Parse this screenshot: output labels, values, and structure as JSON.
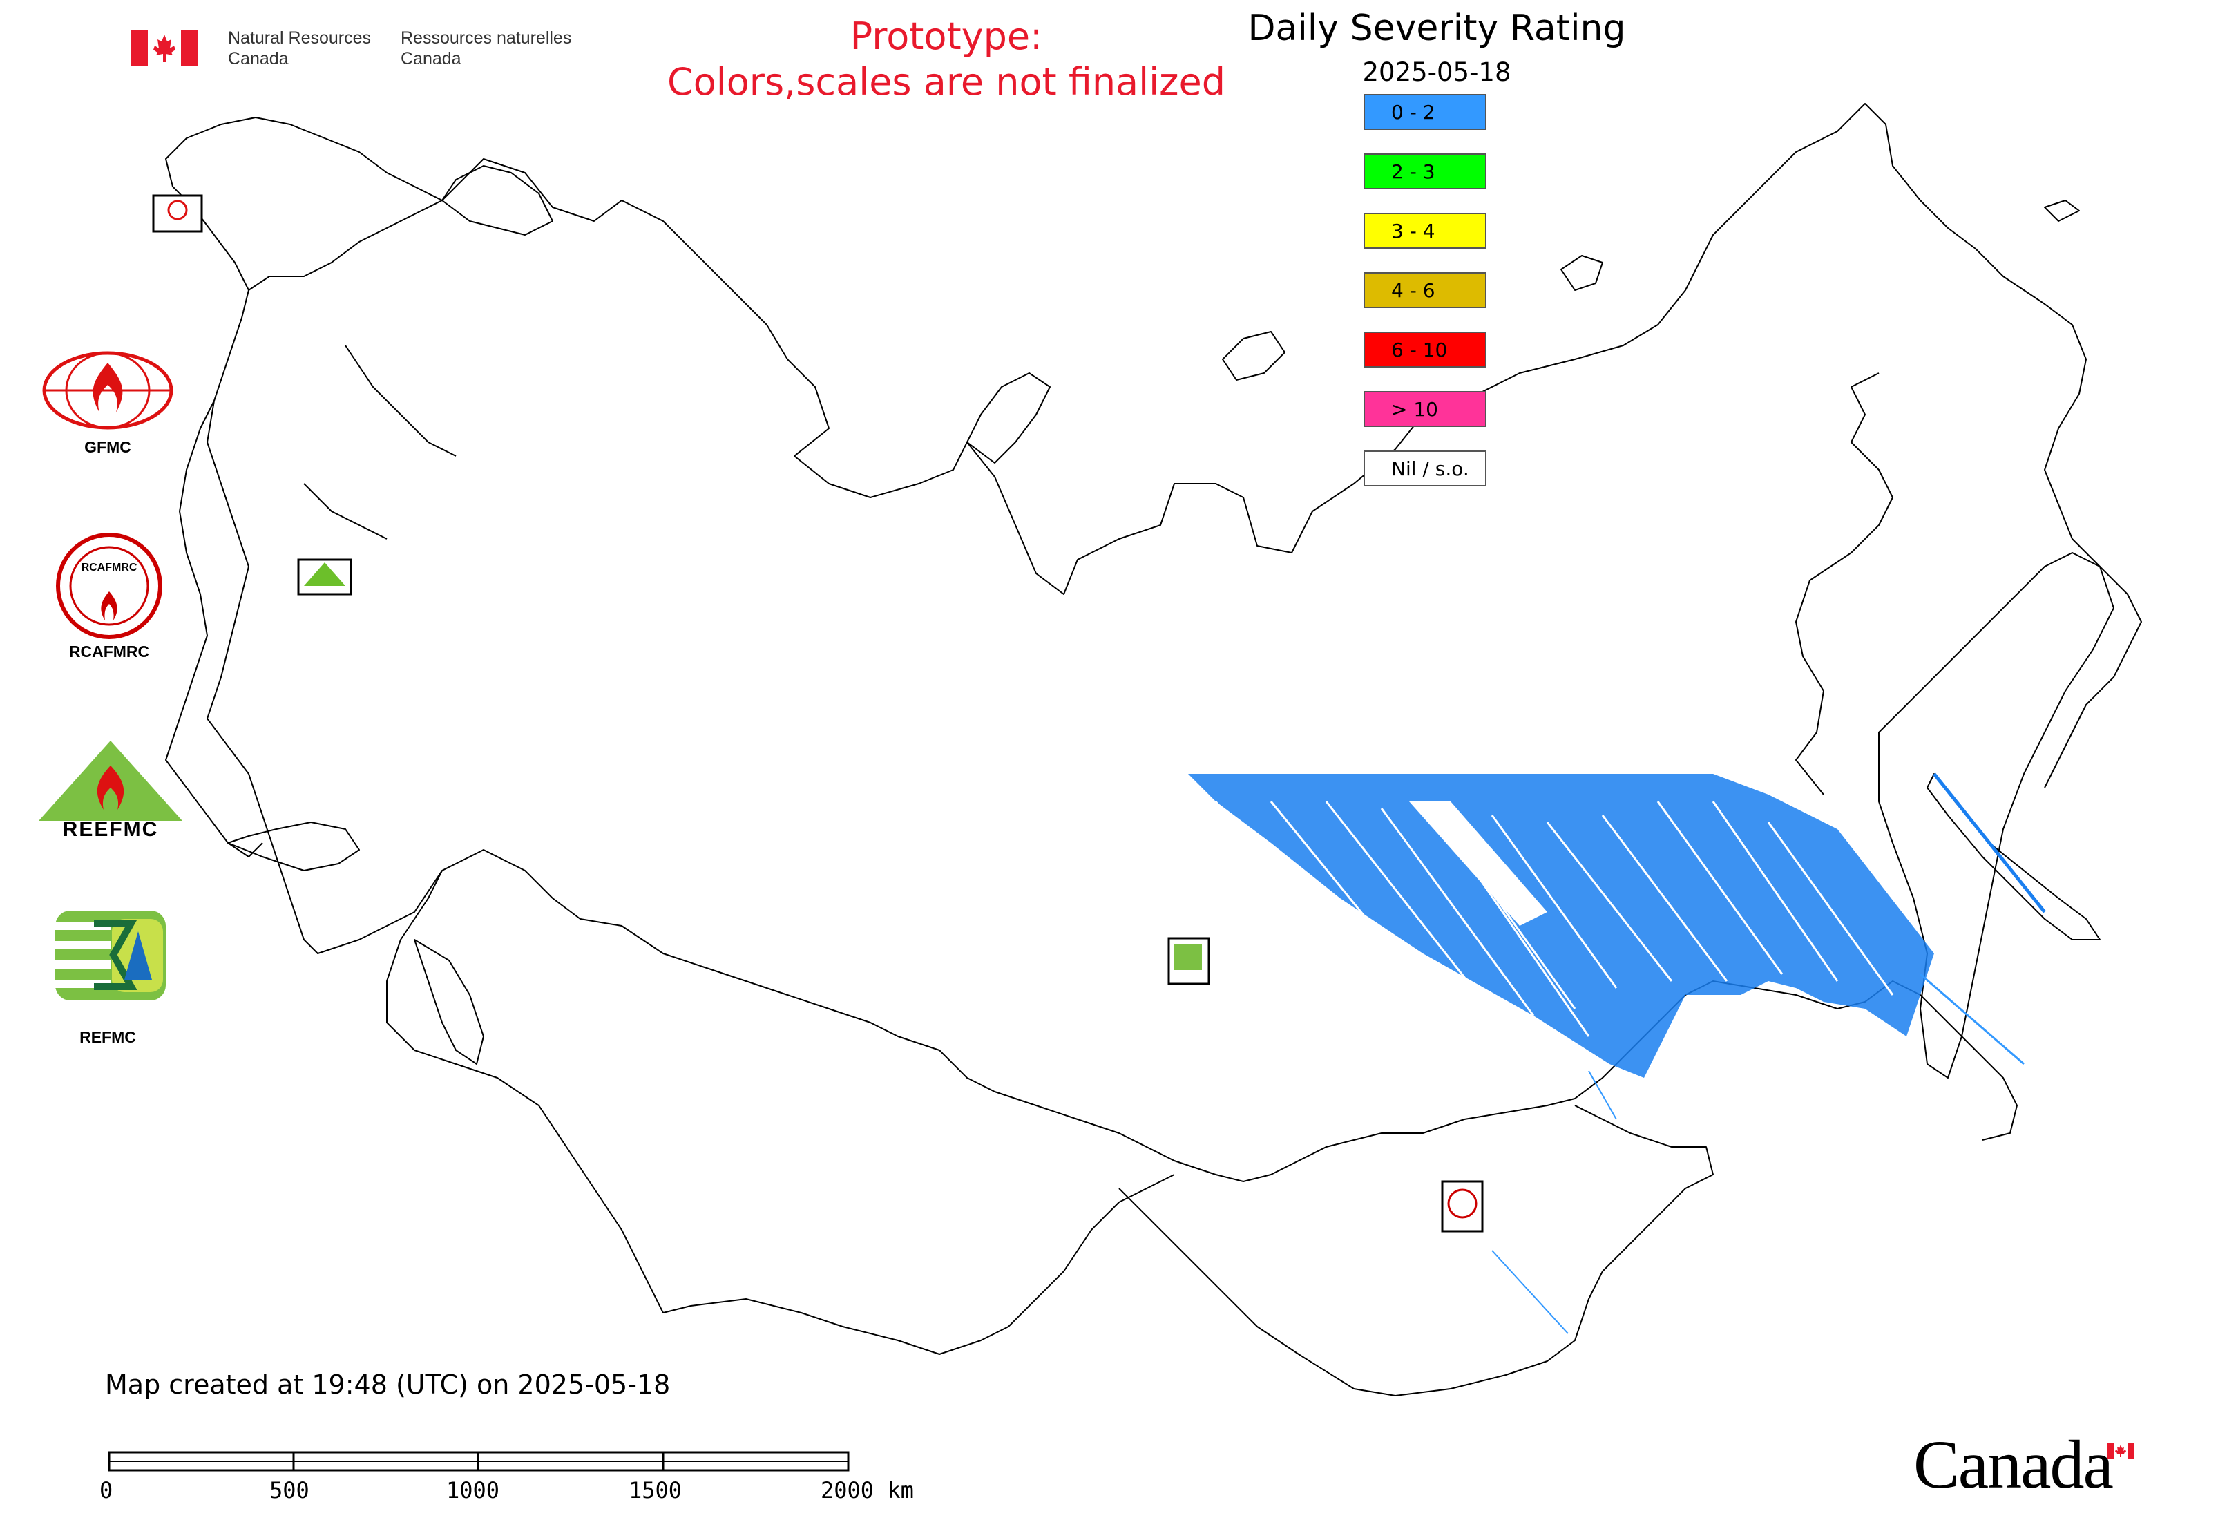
{
  "header": {
    "dept_en": "Natural Resources\nCanada",
    "dept_fr": "Ressources naturelles\nCanada",
    "prototype_line1": "Prototype:",
    "prototype_line2": "Colors,scales are not finalized"
  },
  "map": {
    "title": "Daily Severity Rating",
    "date": "2025-05-18",
    "created_text": "Map created at 19:48 (UTC) on 2025-05-18"
  },
  "legend": [
    {
      "label": "0 - 2",
      "color": "#3399ff"
    },
    {
      "label": "2 - 3",
      "color": "#00ff00"
    },
    {
      "label": "3 - 4",
      "color": "#ffff00"
    },
    {
      "label": "4 - 6",
      "color": "#ddbb00"
    },
    {
      "label": "6 - 10",
      "color": "#ff0000"
    },
    {
      "label": "> 10",
      "color": "#ff3399"
    },
    {
      "label": "Nil / s.o.",
      "color": "#ffffff"
    }
  ],
  "agencies": [
    {
      "name": "GFMC",
      "icon": "gfmc-logo-icon"
    },
    {
      "name": "RCAFMRC",
      "icon": "rcafmrc-logo-icon"
    },
    {
      "name": "REEFMC",
      "icon": "reefmc-logo-icon"
    },
    {
      "name": "REFMC",
      "icon": "refmc-logo-icon"
    }
  ],
  "scale_bar": {
    "labels": [
      "0",
      "500",
      "1000",
      "1500",
      "2000 km"
    ]
  },
  "footer": {
    "wordmark": "Canada"
  },
  "colors": {
    "accent_red": "#e8192c",
    "severity_low_fill": "#1a7ff0"
  }
}
